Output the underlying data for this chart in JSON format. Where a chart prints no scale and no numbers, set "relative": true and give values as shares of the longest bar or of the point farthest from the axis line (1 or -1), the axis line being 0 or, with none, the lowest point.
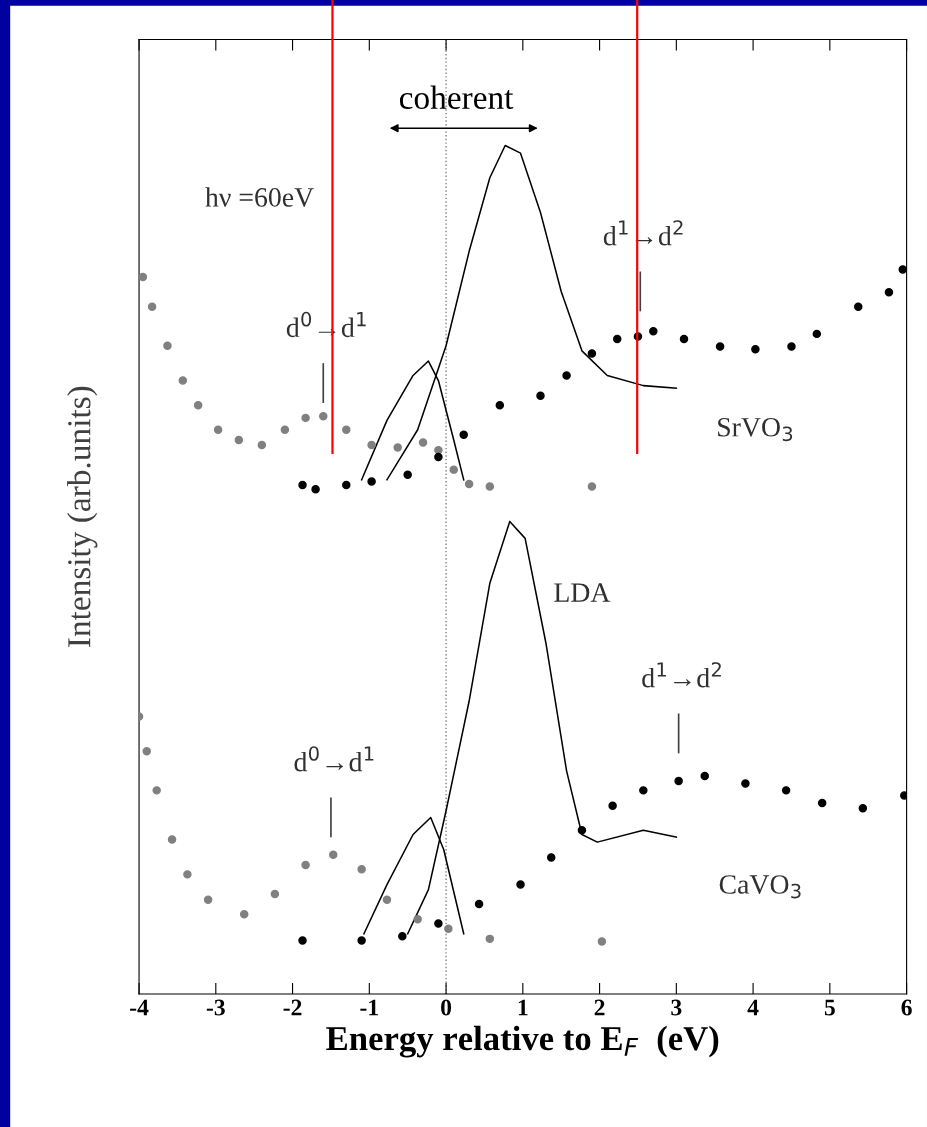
{
  "chart_data": {
    "type": "line",
    "relative": true,
    "xlabel": "Energy relative to E$_{F}$  (eV)",
    "ylabel": "Intensity (arb.units)",
    "xlim": [
      -4,
      6
    ],
    "xticks": [
      -4,
      -3,
      -2,
      -1,
      0,
      1,
      2,
      3,
      4,
      5,
      6
    ],
    "tick_labels": "x",
    "grid": false,
    "series": [
      {
        "type": "scatter",
        "marker": "circle",
        "color": "#808080",
        "x": [
          -3.95,
          -3.83,
          -3.63,
          -3.43,
          -3.23,
          -2.97,
          -2.7,
          -2.4,
          -2.1,
          -1.83,
          -1.6,
          -1.3,
          -0.97,
          -0.63,
          -0.3,
          -0.1,
          0.1,
          0.3,
          0.57,
          1.9
        ],
        "values": [
          0.845,
          0.81,
          0.764,
          0.723,
          0.694,
          0.665,
          0.653,
          0.647,
          0.665,
          0.679,
          0.681,
          0.665,
          0.647,
          0.644,
          0.65,
          0.641,
          0.618,
          0.601,
          0.598,
          0.598
        ]
      },
      {
        "type": "scatter",
        "marker": "circle",
        "color": "#000000",
        "x": [
          -1.87,
          -1.7,
          -1.3,
          -0.97,
          -0.5,
          -0.1,
          0.23,
          0.7,
          1.23,
          1.57,
          1.9,
          2.23,
          2.5,
          2.7,
          3.1,
          3.57,
          4.03,
          4.5,
          4.83,
          5.37,
          5.77,
          5.95
        ],
        "values": [
          0.6,
          0.595,
          0.6,
          0.604,
          0.612,
          0.633,
          0.659,
          0.694,
          0.705,
          0.729,
          0.755,
          0.772,
          0.775,
          0.781,
          0.772,
          0.763,
          0.76,
          0.763,
          0.778,
          0.81,
          0.827,
          0.854
        ]
      },
      {
        "marker": "none",
        "color": "#000000",
        "x": [
          -1.1,
          -0.77,
          -0.43,
          -0.23,
          -0.1,
          0.1,
          0.23
        ],
        "values": [
          0.606,
          0.676,
          0.729,
          0.746,
          0.723,
          0.653,
          0.606
        ]
      },
      {
        "marker": "none",
        "color": "#000000",
        "x": [
          -0.77,
          -0.37,
          0,
          0.3,
          0.57,
          0.77,
          0.97,
          1.23,
          1.5,
          1.77,
          2.1,
          2.57,
          3.0
        ],
        "values": [
          0.606,
          0.665,
          0.764,
          0.875,
          0.962,
          1.0,
          0.991,
          0.921,
          0.828,
          0.758,
          0.729,
          0.717,
          0.714
        ]
      },
      {
        "type": "scatter",
        "marker": "circle",
        "color": "#808080",
        "x": [
          -4.0,
          -3.9,
          -3.77,
          -3.57,
          -3.37,
          -3.1,
          -2.63,
          -2.23,
          -1.83,
          -1.47,
          -1.1,
          -0.77,
          -0.37,
          0.03,
          0.57,
          2.03
        ],
        "values": [
          0.327,
          0.286,
          0.24,
          0.182,
          0.141,
          0.111,
          0.094,
          0.118,
          0.152,
          0.164,
          0.147,
          0.111,
          0.088,
          0.077,
          0.065,
          0.062
        ]
      },
      {
        "type": "scatter",
        "marker": "circle",
        "color": "#000000",
        "x": [
          -1.87,
          -1.1,
          -0.57,
          -0.1,
          0.43,
          0.97,
          1.37,
          1.77,
          2.17,
          2.57,
          3.03,
          3.37,
          3.9,
          4.43,
          4.9,
          5.43,
          5.97
        ],
        "values": [
          0.063,
          0.063,
          0.068,
          0.083,
          0.106,
          0.129,
          0.161,
          0.193,
          0.222,
          0.24,
          0.251,
          0.257,
          0.248,
          0.24,
          0.225,
          0.219,
          0.234
        ]
      },
      {
        "marker": "none",
        "color": "#000000",
        "x": [
          -1.07,
          -0.77,
          -0.43,
          -0.2,
          -0.03,
          0.23
        ],
        "values": [
          0.071,
          0.129,
          0.188,
          0.208,
          0.17,
          0.071
        ]
      },
      {
        "marker": "none",
        "color": "#000000",
        "x": [
          -0.5,
          -0.23,
          0,
          0.3,
          0.57,
          0.83,
          1.03,
          1.3,
          1.57,
          1.77,
          1.97,
          2.57,
          3.0
        ],
        "values": [
          0.071,
          0.123,
          0.216,
          0.345,
          0.484,
          0.557,
          0.537,
          0.414,
          0.263,
          0.188,
          0.179,
          0.193,
          0.185
        ]
      }
    ],
    "ref_lines": [
      {
        "axis": "x",
        "value": 0,
        "color": "#808080",
        "line_style": "dotted"
      },
      {
        "axis": "x",
        "value": -1.48,
        "color": "#ff0000",
        "line_style": "solid"
      },
      {
        "axis": "x",
        "value": 2.49,
        "color": "#ff0000",
        "line_style": "solid"
      }
    ],
    "annotations": [
      "coherent",
      "hν =60eV",
      "d$^{1}$→d$^{2}$",
      "d$^{0}$→d$^{1}$",
      "SrVO$_{3}$",
      "LDA",
      "d$^{1}$→d$^{2}$",
      "d$^{0}$→d$^{1}$",
      "CaVO$_{3}$"
    ]
  }
}
